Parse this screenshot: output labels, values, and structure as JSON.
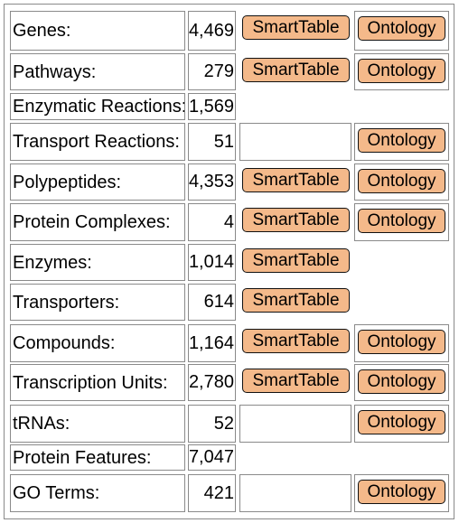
{
  "rows": [
    {
      "label": "Genes:",
      "count": "4,469",
      "smart": "SmartTable",
      "ontology": "Ontology"
    },
    {
      "label": "Pathways:",
      "count": "279",
      "smart": "SmartTable",
      "ontology": "Ontology"
    },
    {
      "label": "Enzymatic Reactions:",
      "count": "1,569"
    },
    {
      "label": "Transport Reactions:",
      "count": "51",
      "ontology": "Ontology",
      "empty_smart": true
    },
    {
      "label": "Polypeptides:",
      "count": "4,353",
      "smart": "SmartTable",
      "ontology": "Ontology"
    },
    {
      "label": "Protein Complexes:",
      "count": "4",
      "smart": "SmartTable",
      "ontology": "Ontology"
    },
    {
      "label": "Enzymes:",
      "count": "1,014",
      "smart": "SmartTable"
    },
    {
      "label": "Transporters:",
      "count": "614",
      "smart": "SmartTable"
    },
    {
      "label": "Compounds:",
      "count": "1,164",
      "smart": "SmartTable",
      "ontology": "Ontology"
    },
    {
      "label": "Transcription Units:",
      "count": "2,780",
      "smart": "SmartTable",
      "ontology": "Ontology"
    },
    {
      "label": "tRNAs:",
      "count": "52",
      "ontology": "Ontology",
      "empty_smart": true
    },
    {
      "label": "Protein Features:",
      "count": "7,047"
    },
    {
      "label": "GO Terms:",
      "count": "421",
      "ontology": "Ontology",
      "empty_smart": true
    }
  ],
  "colors": {
    "button_bg": "#f4b98a",
    "border": "#8a8a8a"
  }
}
